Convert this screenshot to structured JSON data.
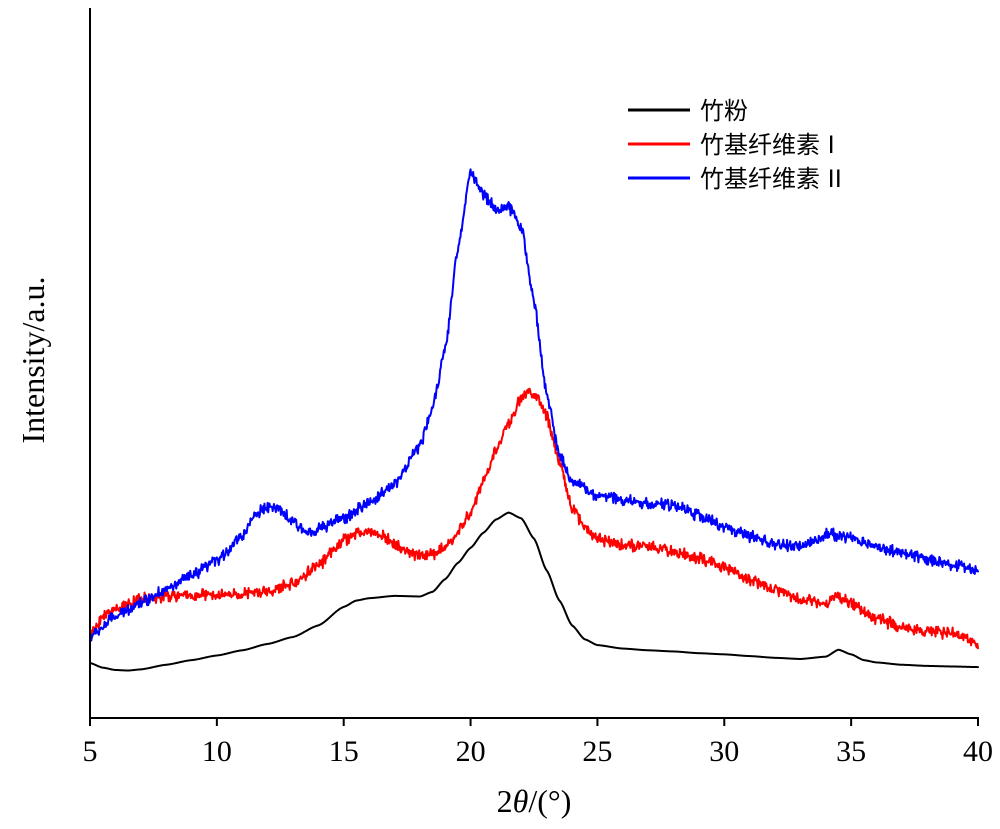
{
  "chart_data": {
    "type": "line",
    "title": "",
    "xlabel_prefix": "2",
    "xlabel_theta": "θ",
    "xlabel_suffix": "/(°)",
    "ylabel": "Intensity/a.u.",
    "xlim": [
      5,
      40
    ],
    "ylim": [
      0,
      1
    ],
    "x_ticks": [
      5,
      10,
      15,
      20,
      25,
      30,
      35,
      40
    ],
    "y_ticks_shown": false,
    "grid": false,
    "legend_position": "top-right",
    "series": [
      {
        "name": "竹粉",
        "color": "#000000",
        "noise": 0.0,
        "points": [
          [
            5,
            0.095
          ],
          [
            5.5,
            0.087
          ],
          [
            6,
            0.083
          ],
          [
            6.5,
            0.082
          ],
          [
            7,
            0.084
          ],
          [
            8,
            0.092
          ],
          [
            9,
            0.1
          ],
          [
            10,
            0.108
          ],
          [
            11,
            0.117
          ],
          [
            12,
            0.128
          ],
          [
            13,
            0.14
          ],
          [
            14,
            0.16
          ],
          [
            15,
            0.192
          ],
          [
            15.5,
            0.203
          ],
          [
            16,
            0.207
          ],
          [
            17,
            0.211
          ],
          [
            18,
            0.21
          ],
          [
            18.5,
            0.218
          ],
          [
            19,
            0.24
          ],
          [
            19.5,
            0.268
          ],
          [
            20,
            0.294
          ],
          [
            20.5,
            0.32
          ],
          [
            21,
            0.343
          ],
          [
            21.5,
            0.355
          ],
          [
            22,
            0.345
          ],
          [
            22.5,
            0.31
          ],
          [
            23,
            0.255
          ],
          [
            23.5,
            0.203
          ],
          [
            24,
            0.16
          ],
          [
            24.5,
            0.136
          ],
          [
            25,
            0.126
          ],
          [
            26,
            0.12
          ],
          [
            27,
            0.117
          ],
          [
            28,
            0.115
          ],
          [
            29,
            0.112
          ],
          [
            30,
            0.11
          ],
          [
            31,
            0.107
          ],
          [
            32,
            0.104
          ],
          [
            33,
            0.102
          ],
          [
            34,
            0.106
          ],
          [
            34.5,
            0.118
          ],
          [
            35,
            0.11
          ],
          [
            35.5,
            0.1
          ],
          [
            36,
            0.096
          ],
          [
            37,
            0.092
          ],
          [
            38,
            0.09
          ],
          [
            39,
            0.089
          ],
          [
            40,
            0.088
          ]
        ]
      },
      {
        "name": "竹基纤维素 I",
        "color": "#ff0000",
        "noise": 0.012,
        "points": [
          [
            5,
            0.14
          ],
          [
            5.5,
            0.175
          ],
          [
            6,
            0.19
          ],
          [
            7,
            0.205
          ],
          [
            8,
            0.21
          ],
          [
            9,
            0.212
          ],
          [
            10,
            0.212
          ],
          [
            11,
            0.214
          ],
          [
            12,
            0.218
          ],
          [
            13,
            0.232
          ],
          [
            14,
            0.265
          ],
          [
            15,
            0.307
          ],
          [
            15.5,
            0.318
          ],
          [
            16,
            0.322
          ],
          [
            16.5,
            0.316
          ],
          [
            17,
            0.3
          ],
          [
            17.5,
            0.287
          ],
          [
            18,
            0.282
          ],
          [
            18.5,
            0.283
          ],
          [
            19,
            0.295
          ],
          [
            19.5,
            0.32
          ],
          [
            20,
            0.355
          ],
          [
            20.5,
            0.408
          ],
          [
            21,
            0.462
          ],
          [
            21.5,
            0.51
          ],
          [
            22,
            0.552
          ],
          [
            22.3,
            0.565
          ],
          [
            22.7,
            0.55
          ],
          [
            23,
            0.52
          ],
          [
            23.5,
            0.44
          ],
          [
            24,
            0.365
          ],
          [
            24.5,
            0.33
          ],
          [
            25,
            0.31
          ],
          [
            26,
            0.3
          ],
          [
            27,
            0.295
          ],
          [
            28,
            0.288
          ],
          [
            29,
            0.275
          ],
          [
            30,
            0.26
          ],
          [
            31,
            0.24
          ],
          [
            32,
            0.222
          ],
          [
            33,
            0.205
          ],
          [
            34,
            0.2
          ],
          [
            34.5,
            0.21
          ],
          [
            35,
            0.198
          ],
          [
            36,
            0.172
          ],
          [
            37,
            0.157
          ],
          [
            38,
            0.15
          ],
          [
            39,
            0.145
          ],
          [
            40,
            0.13
          ]
        ]
      },
      {
        "name": "竹基纤维素 II",
        "color": "#0000ff",
        "noise": 0.012,
        "points": [
          [
            5,
            0.14
          ],
          [
            6,
            0.175
          ],
          [
            7,
            0.2
          ],
          [
            8,
            0.222
          ],
          [
            9,
            0.245
          ],
          [
            10,
            0.272
          ],
          [
            11,
            0.315
          ],
          [
            11.5,
            0.35
          ],
          [
            12,
            0.367
          ],
          [
            12.5,
            0.358
          ],
          [
            13,
            0.338
          ],
          [
            13.5,
            0.322
          ],
          [
            14,
            0.327
          ],
          [
            15,
            0.345
          ],
          [
            16,
            0.372
          ],
          [
            17,
            0.405
          ],
          [
            18,
            0.47
          ],
          [
            18.5,
            0.535
          ],
          [
            19,
            0.64
          ],
          [
            19.5,
            0.81
          ],
          [
            20,
            0.945
          ],
          [
            20.5,
            0.905
          ],
          [
            21,
            0.88
          ],
          [
            21.5,
            0.882
          ],
          [
            22,
            0.85
          ],
          [
            22.5,
            0.72
          ],
          [
            23,
            0.56
          ],
          [
            23.5,
            0.455
          ],
          [
            24,
            0.41
          ],
          [
            25,
            0.385
          ],
          [
            26,
            0.378
          ],
          [
            27,
            0.37
          ],
          [
            28,
            0.368
          ],
          [
            29,
            0.35
          ],
          [
            30,
            0.33
          ],
          [
            31,
            0.313
          ],
          [
            32,
            0.3
          ],
          [
            33,
            0.295
          ],
          [
            33.5,
            0.305
          ],
          [
            34,
            0.318
          ],
          [
            35,
            0.312
          ],
          [
            36,
            0.297
          ],
          [
            37,
            0.285
          ],
          [
            38,
            0.275
          ],
          [
            39,
            0.265
          ],
          [
            40,
            0.255
          ]
        ]
      }
    ]
  }
}
